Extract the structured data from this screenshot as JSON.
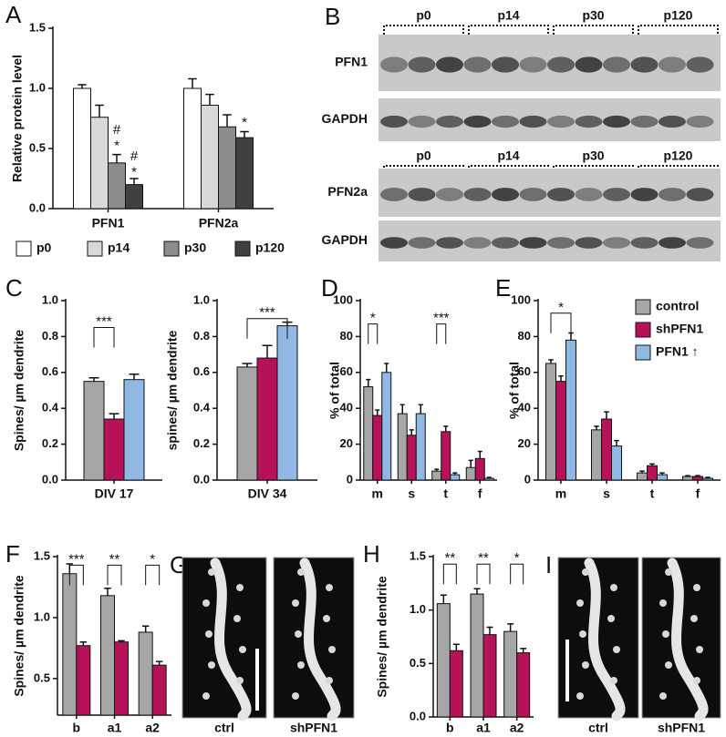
{
  "chart_data": [
    {
      "type": "bar",
      "panel": "A",
      "ylabel": "Relative protein level",
      "categories": [
        "PFN1",
        "PFN2a"
      ],
      "ylim": [
        0,
        1.5
      ],
      "yticks": [
        {
          "value": 0,
          "label": "0.0"
        },
        {
          "value": 0.5,
          "label": "0.5"
        },
        {
          "value": 1,
          "label": "1.0"
        },
        {
          "value": 1.5,
          "label": "1.5"
        }
      ],
      "series": [
        {
          "name": "p0",
          "color": "#ffffff",
          "values": [
            1.0,
            1.0
          ],
          "errors": [
            0.03,
            0.08
          ]
        },
        {
          "name": "p14",
          "color": "#d9d9d9",
          "values": [
            0.76,
            0.86
          ],
          "errors": [
            0.1,
            0.09
          ]
        },
        {
          "name": "p30",
          "color": "#8c8c8c",
          "values": [
            0.38,
            0.68
          ],
          "errors": [
            0.07,
            0.1
          ]
        },
        {
          "name": "p120",
          "color": "#404040",
          "values": [
            0.2,
            0.59
          ],
          "errors": [
            0.05,
            0.05
          ]
        }
      ],
      "annotations": [
        "#",
        "*",
        "#",
        "*",
        "*"
      ]
    },
    {
      "type": "bar",
      "panel": "C",
      "ylabel": "Spines/ µm dendrite",
      "categories": [
        "DIV 17"
      ],
      "ylim": [
        0,
        1.0
      ],
      "yticks": [
        {
          "value": 0,
          "label": "0.0"
        },
        {
          "value": 0.2,
          "label": "0.2"
        },
        {
          "value": 0.4,
          "label": "0.4"
        },
        {
          "value": 0.6,
          "label": "0.6"
        },
        {
          "value": 0.8,
          "label": "0.8"
        },
        {
          "value": 1,
          "label": "1.0"
        }
      ],
      "series": [
        {
          "color": "#a6a6a6",
          "values": [
            0.55
          ],
          "errors": [
            0.02
          ]
        },
        {
          "color": "#b5125a",
          "values": [
            0.34
          ],
          "errors": [
            0.03
          ]
        },
        {
          "color": "#8fb8e3",
          "values": [
            0.56
          ],
          "errors": [
            0.03
          ]
        }
      ],
      "annotations": [
        "***"
      ]
    },
    {
      "type": "bar",
      "ylabel": "spines/ µm dendrite",
      "categories": [
        "DIV 34"
      ],
      "ylim": [
        0,
        1.0
      ],
      "yticks": [
        {
          "value": 0,
          "label": "0.0"
        },
        {
          "value": 0.2,
          "label": "0.2"
        },
        {
          "value": 0.4,
          "label": "0.4"
        },
        {
          "value": 0.6,
          "label": "0.6"
        },
        {
          "value": 0.8,
          "label": "0.8"
        },
        {
          "value": 1,
          "label": "1.0"
        }
      ],
      "series": [
        {
          "color": "#a6a6a6",
          "values": [
            0.63
          ],
          "errors": [
            0.02
          ]
        },
        {
          "color": "#b5125a",
          "values": [
            0.68
          ],
          "errors": [
            0.07
          ]
        },
        {
          "color": "#8fb8e3",
          "values": [
            0.86
          ],
          "errors": [
            0.02
          ]
        }
      ],
      "annotations": [
        "***"
      ]
    },
    {
      "type": "bar",
      "panel": "D",
      "ylabel": "% of total",
      "categories": [
        "m",
        "s",
        "t",
        "f"
      ],
      "ylim": [
        0,
        100
      ],
      "yticks": [
        0,
        20,
        40,
        60,
        80,
        100
      ],
      "series": [
        {
          "color": "#a6a6a6",
          "values": [
            52,
            37,
            5,
            7
          ],
          "errors": [
            4,
            5,
            1,
            4
          ]
        },
        {
          "color": "#b5125a",
          "values": [
            36,
            25,
            27,
            12
          ],
          "errors": [
            3,
            3,
            3,
            4
          ]
        },
        {
          "color": "#8fb8e3",
          "values": [
            60,
            37,
            3,
            1
          ],
          "errors": [
            5,
            5,
            1,
            0.5
          ]
        }
      ],
      "annotations": [
        "*",
        "***"
      ]
    },
    {
      "type": "bar",
      "panel": "E",
      "ylabel": "% of total",
      "categories": [
        "m",
        "s",
        "t",
        "f"
      ],
      "ylim": [
        0,
        100
      ],
      "yticks": [
        0,
        20,
        40,
        60,
        80,
        100
      ],
      "series": [
        {
          "name": "control",
          "color": "#a6a6a6",
          "values": [
            65,
            28,
            4,
            2
          ],
          "errors": [
            2,
            2,
            1,
            0.5
          ]
        },
        {
          "name": "shPFN1",
          "color": "#b5125a",
          "values": [
            55,
            34,
            8,
            2
          ],
          "errors": [
            3,
            4,
            1,
            0.5
          ]
        },
        {
          "name": "PFN1 ↑",
          "color": "#8fb8e3",
          "values": [
            78,
            19,
            3,
            1
          ],
          "errors": [
            4,
            3,
            1,
            0.5
          ]
        }
      ],
      "annotations": [
        "*"
      ]
    },
    {
      "type": "bar",
      "panel": "F",
      "ylabel": "Spines/ µm dendrite",
      "categories": [
        "b",
        "a1",
        "a2"
      ],
      "ylim": [
        0.2,
        1.5
      ],
      "yticks": [
        {
          "value": 0.5,
          "label": "0.5"
        },
        {
          "value": 1,
          "label": "1.0"
        },
        {
          "value": 1.5,
          "label": "1.5"
        }
      ],
      "series": [
        {
          "color": "#a6a6a6",
          "values": [
            1.36,
            1.18,
            0.88
          ],
          "errors": [
            0.08,
            0.06,
            0.05
          ]
        },
        {
          "color": "#b5125a",
          "values": [
            0.77,
            0.8,
            0.61
          ],
          "errors": [
            0.03,
            0.01,
            0.03
          ]
        }
      ],
      "annotations": [
        "***",
        "**",
        "*"
      ]
    },
    {
      "type": "bar",
      "panel": "H",
      "ylabel": "Spines/ µm dendrite",
      "categories": [
        "b",
        "a1",
        "a2"
      ],
      "ylim": [
        0,
        1.5
      ],
      "yticks": [
        {
          "value": 0,
          "label": "0.0"
        },
        {
          "value": 0.5,
          "label": "0.5"
        },
        {
          "value": 1,
          "label": "1.0"
        },
        {
          "value": 1.5,
          "label": "1.5"
        }
      ],
      "series": [
        {
          "color": "#a6a6a6",
          "values": [
            1.06,
            1.15,
            0.8
          ],
          "errors": [
            0.08,
            0.05,
            0.07
          ]
        },
        {
          "color": "#b5125a",
          "values": [
            0.62,
            0.77,
            0.6
          ],
          "errors": [
            0.06,
            0.07,
            0.04
          ]
        }
      ],
      "annotations": [
        "**",
        "**",
        "*"
      ]
    }
  ],
  "blots": {
    "panel": "B",
    "groups": [
      "p0",
      "p14",
      "p30",
      "p120"
    ],
    "rows": [
      "PFN1",
      "GAPDH",
      "PFN2a",
      "GAPDH"
    ]
  },
  "micrographs": [
    {
      "panel": "G",
      "labels": [
        "ctrl",
        "shPFN1"
      ]
    },
    {
      "panel": "I",
      "labels": [
        "ctrl",
        "shPFN1"
      ]
    }
  ]
}
